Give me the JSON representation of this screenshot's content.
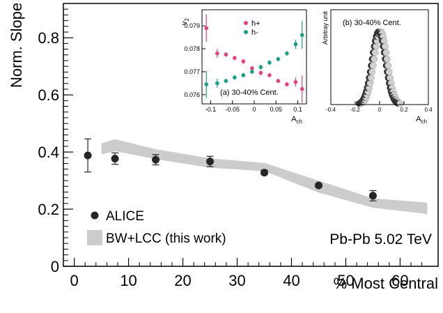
{
  "chart_data": [
    {
      "id": "main",
      "type": "scatter",
      "xlabel": "% Most Central",
      "ylabel": "Norm. Slope",
      "xlim": [
        -2,
        67
      ],
      "ylim": [
        0,
        0.92
      ],
      "xticks": [
        0,
        10,
        20,
        30,
        40,
        50,
        60
      ],
      "yticks": [
        0,
        0.2,
        0.4,
        0.6,
        0.8
      ],
      "ytick_labels": [
        "0",
        "0.2",
        "0.4",
        "0.6",
        "0.8"
      ],
      "series": [
        {
          "name": "ALICE",
          "kind": "points_with_errors",
          "color": "#262626",
          "x": [
            2.5,
            7.5,
            15,
            25,
            35,
            45,
            55
          ],
          "y": [
            0.388,
            0.377,
            0.373,
            0.367,
            0.328,
            0.283,
            0.247
          ],
          "yerr": [
            0.058,
            0.02,
            0.018,
            0.018,
            0.008,
            0.006,
            0.018
          ]
        },
        {
          "name": "BW+LCC (this work)",
          "kind": "band",
          "color": "#cccccc",
          "x": [
            5,
            7.5,
            15,
            25,
            35,
            45,
            55,
            65
          ],
          "y_low": [
            0.392,
            0.403,
            0.375,
            0.345,
            0.333,
            0.258,
            0.205,
            0.183
          ],
          "y_high": [
            0.43,
            0.445,
            0.41,
            0.378,
            0.362,
            0.3,
            0.238,
            0.223
          ]
        }
      ],
      "legend_placement": "bottom-left",
      "annotation": "Pb-Pb 5.02 TeV",
      "grid": false
    },
    {
      "id": "inset-a",
      "type": "scatter",
      "xlabel": "A",
      "xlabel_sub": "ch",
      "ylabel": "v",
      "ylabel_sub": "2",
      "xlim": [
        -0.12,
        0.12
      ],
      "ylim": [
        0.0756,
        0.0797
      ],
      "xticks": [
        -0.1,
        -0.05,
        0,
        0.05,
        0.1
      ],
      "xtick_labels": [
        "-0.1",
        "-0.05",
        "0",
        "0.05",
        "0.1"
      ],
      "yticks": [
        0.076,
        0.077,
        0.078,
        0.079
      ],
      "ytick_labels": [
        "0.076",
        "0.077",
        "0.078",
        "0.079"
      ],
      "series": [
        {
          "name": "h+",
          "color": "#e8417a",
          "x": [
            -0.11,
            -0.085,
            -0.065,
            -0.045,
            -0.025,
            -0.005,
            0.015,
            0.035,
            0.055,
            0.075,
            0.095,
            0.11
          ],
          "y": [
            0.0789,
            0.0778,
            0.07775,
            0.0776,
            0.07745,
            0.07715,
            0.07695,
            0.07685,
            0.0766,
            0.07645,
            0.07655,
            0.07625
          ],
          "yerr": [
            0.0006,
            0.0002,
            0.0001,
            0.0001,
            0.0001,
            0.0001,
            0.0001,
            0.0001,
            0.0001,
            0.0001,
            0.0002,
            0.0006
          ]
        },
        {
          "name": "h-",
          "color": "#16a085",
          "x": [
            -0.11,
            -0.085,
            -0.065,
            -0.045,
            -0.025,
            -0.005,
            0.015,
            0.035,
            0.055,
            0.075,
            0.095,
            0.11
          ],
          "y": [
            0.07645,
            0.0765,
            0.0766,
            0.07675,
            0.07685,
            0.077,
            0.0772,
            0.0774,
            0.07755,
            0.0778,
            0.0782,
            0.0786
          ],
          "yerr": [
            0.0006,
            0.0002,
            0.0001,
            0.0001,
            0.0001,
            0.0001,
            0.0001,
            0.0001,
            0.0001,
            0.0001,
            0.0002,
            0.0006
          ]
        }
      ],
      "annotation": "(a) 30-40% Cent.",
      "legend_placement": "top-center"
    },
    {
      "id": "inset-b",
      "type": "scatter",
      "xlabel": "A",
      "xlabel_sub": "ch",
      "ylabel": "Arbitray unit",
      "xlim": [
        -0.4,
        0.4
      ],
      "ylim": [
        0,
        1.3
      ],
      "xticks": [
        -0.4,
        -0.2,
        0,
        0.2,
        0.4
      ],
      "xtick_labels": [
        "-0.4",
        "-0.2",
        "0",
        "0.2",
        "0.4"
      ],
      "distribution": {
        "shape": "gaussian",
        "mean": 0,
        "sigma": 0.055,
        "peak": 1.0,
        "x_range": [
          -0.16,
          0.16
        ],
        "n_points": 40,
        "colors": [
          "#333333",
          "#d0d0d0"
        ]
      },
      "annotation": "(b) 30-40% Cent."
    }
  ]
}
